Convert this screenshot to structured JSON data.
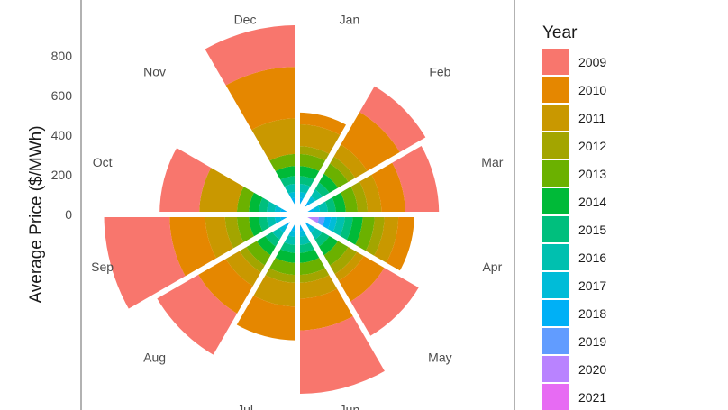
{
  "chart_data": {
    "type": "bar",
    "coord": "polar",
    "stacked": true,
    "title": "",
    "xlabel": "",
    "ylabel": "Average Price ($/MWh)",
    "ylim": [
      0,
      900
    ],
    "yticks": [
      0,
      200,
      400,
      600,
      800
    ],
    "categories": [
      "Jan",
      "Feb",
      "Mar",
      "Apr",
      "May",
      "Jun",
      "Jul",
      "Aug",
      "Sep",
      "Oct",
      "Nov",
      "Dec"
    ],
    "legend": {
      "title": "Year",
      "position": "right"
    },
    "series": [
      {
        "name": "2009",
        "color": "#F8766D",
        "values": [
          0,
          150,
          170,
          0,
          200,
          320,
          0,
          240,
          330,
          200,
          0,
          210
        ]
      },
      {
        "name": "2010",
        "color": "#E58700",
        "values": [
          60,
          190,
          120,
          80,
          120,
          160,
          170,
          160,
          180,
          0,
          0,
          260
        ]
      },
      {
        "name": "2011",
        "color": "#C99800",
        "values": [
          110,
          70,
          70,
          70,
          40,
          80,
          120,
          80,
          100,
          190,
          0,
          180
        ]
      },
      {
        "name": "2012",
        "color": "#A3A500",
        "values": [
          40,
          40,
          50,
          50,
          50,
          40,
          40,
          40,
          60,
          0,
          0,
          0
        ]
      },
      {
        "name": "2013",
        "color": "#6BB100",
        "values": [
          60,
          60,
          60,
          60,
          60,
          60,
          60,
          60,
          60,
          60,
          0,
          60
        ]
      },
      {
        "name": "2014",
        "color": "#00BA38",
        "values": [
          50,
          50,
          50,
          50,
          50,
          50,
          50,
          50,
          50,
          50,
          0,
          50
        ]
      },
      {
        "name": "2015",
        "color": "#00BF7D",
        "values": [
          40,
          40,
          40,
          40,
          40,
          40,
          40,
          40,
          40,
          40,
          0,
          40
        ]
      },
      {
        "name": "2016",
        "color": "#00C0AF",
        "values": [
          40,
          40,
          40,
          40,
          40,
          40,
          40,
          40,
          40,
          40,
          0,
          40
        ]
      },
      {
        "name": "2017",
        "color": "#00BCD8",
        "values": [
          30,
          30,
          30,
          30,
          30,
          30,
          30,
          30,
          30,
          30,
          0,
          30
        ]
      },
      {
        "name": "2018",
        "color": "#00B0F6",
        "values": [
          30,
          30,
          30,
          30,
          30,
          30,
          30,
          30,
          30,
          30,
          0,
          30
        ]
      },
      {
        "name": "2019",
        "color": "#619CFF",
        "values": [
          30,
          30,
          30,
          30,
          30,
          30,
          30,
          30,
          30,
          30,
          0,
          30
        ]
      },
      {
        "name": "2020",
        "color": "#B983FF",
        "values": [
          15,
          15,
          15,
          100,
          15,
          15,
          15,
          15,
          15,
          15,
          0,
          15
        ]
      },
      {
        "name": "2021",
        "color": "#E76BF3",
        "values": [
          10,
          10,
          10,
          10,
          10,
          10,
          10,
          10,
          10,
          10,
          0,
          10
        ]
      }
    ]
  }
}
